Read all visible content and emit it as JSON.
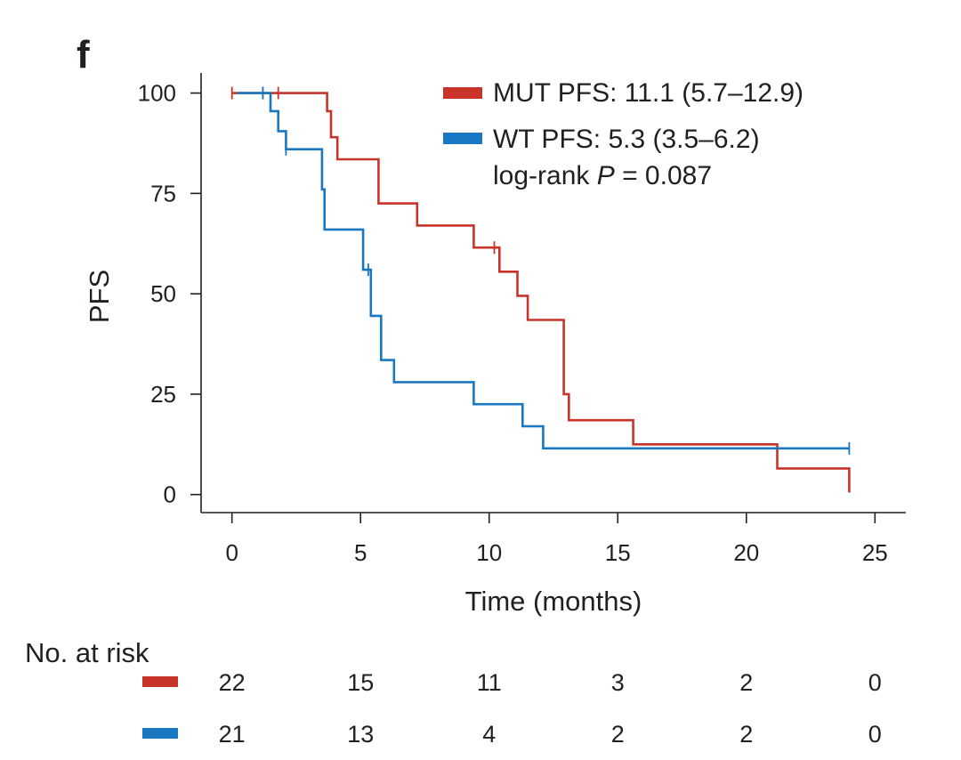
{
  "chart_data": {
    "type": "line",
    "panel_label": "f",
    "xlabel": "Time (months)",
    "ylabel": "PFS",
    "xlim": [
      -1.2,
      26.2
    ],
    "ylim": [
      -4.5,
      105
    ],
    "x_ticks": [
      0,
      5,
      10,
      15,
      20,
      25
    ],
    "y_ticks": [
      0,
      25,
      50,
      75,
      100
    ],
    "grid": false,
    "legend_position": "top-right",
    "series": [
      {
        "name": "MUT PFS: 11.1 (5.7–12.9)",
        "color": "#c8342a",
        "step": [
          [
            0,
            100
          ],
          [
            3.7,
            100
          ],
          [
            3.7,
            95.5
          ],
          [
            3.85,
            95.5
          ],
          [
            3.85,
            89
          ],
          [
            4.1,
            89
          ],
          [
            4.1,
            83.5
          ],
          [
            5.7,
            83.5
          ],
          [
            5.7,
            72.5
          ],
          [
            7.2,
            72.5
          ],
          [
            7.2,
            67
          ],
          [
            9.4,
            67
          ],
          [
            9.4,
            61.5
          ],
          [
            10.4,
            61.5
          ],
          [
            10.4,
            55.5
          ],
          [
            11.1,
            55.5
          ],
          [
            11.1,
            49.5
          ],
          [
            11.5,
            49.5
          ],
          [
            11.5,
            43.5
          ],
          [
            12.9,
            43.5
          ],
          [
            12.9,
            25
          ],
          [
            13.1,
            25
          ],
          [
            13.1,
            18.5
          ],
          [
            15.6,
            18.5
          ],
          [
            15.6,
            12.5
          ],
          [
            21.2,
            12.5
          ],
          [
            21.2,
            6.5
          ],
          [
            24,
            6.5
          ],
          [
            24,
            0.5
          ]
        ],
        "censor": [
          [
            0,
            100
          ],
          [
            1.2,
            100
          ],
          [
            1.8,
            100
          ],
          [
            10.2,
            61.5
          ]
        ]
      },
      {
        "name": "WT PFS: 5.3 (3.5–6.2)",
        "color": "#1a78c2",
        "step": [
          [
            0.2,
            100
          ],
          [
            1.5,
            100
          ],
          [
            1.5,
            95.5
          ],
          [
            1.8,
            95.5
          ],
          [
            1.8,
            90.5
          ],
          [
            2.1,
            90.5
          ],
          [
            2.1,
            86
          ],
          [
            3.5,
            86
          ],
          [
            3.5,
            76
          ],
          [
            3.6,
            76
          ],
          [
            3.6,
            66
          ],
          [
            5.1,
            66
          ],
          [
            5.1,
            56
          ],
          [
            5.4,
            56
          ],
          [
            5.4,
            44.5
          ],
          [
            5.8,
            44.5
          ],
          [
            5.8,
            33.5
          ],
          [
            6.3,
            33.5
          ],
          [
            6.3,
            28
          ],
          [
            9.4,
            28
          ],
          [
            9.4,
            22.5
          ],
          [
            11.3,
            22.5
          ],
          [
            11.3,
            17
          ],
          [
            12.1,
            17
          ],
          [
            12.1,
            11.5
          ],
          [
            24,
            11.5
          ]
        ],
        "censor": [
          [
            1.2,
            100
          ],
          [
            2.1,
            86
          ],
          [
            5.3,
            56
          ],
          [
            24,
            11.5
          ]
        ]
      }
    ],
    "annotation": {
      "prefix": "log-rank ",
      "var": "P",
      "suffix": " = 0.087"
    },
    "risk_table": {
      "title": "No. at risk",
      "times": [
        0,
        5,
        10,
        15,
        20,
        25
      ],
      "rows": [
        {
          "series": "MUT",
          "color": "#c8342a",
          "values": [
            "22",
            "15",
            "11",
            "3",
            "2",
            "0"
          ]
        },
        {
          "series": "WT",
          "color": "#1a78c2",
          "values": [
            "21",
            "13",
            "4",
            "2",
            "2",
            "0"
          ]
        }
      ]
    }
  }
}
